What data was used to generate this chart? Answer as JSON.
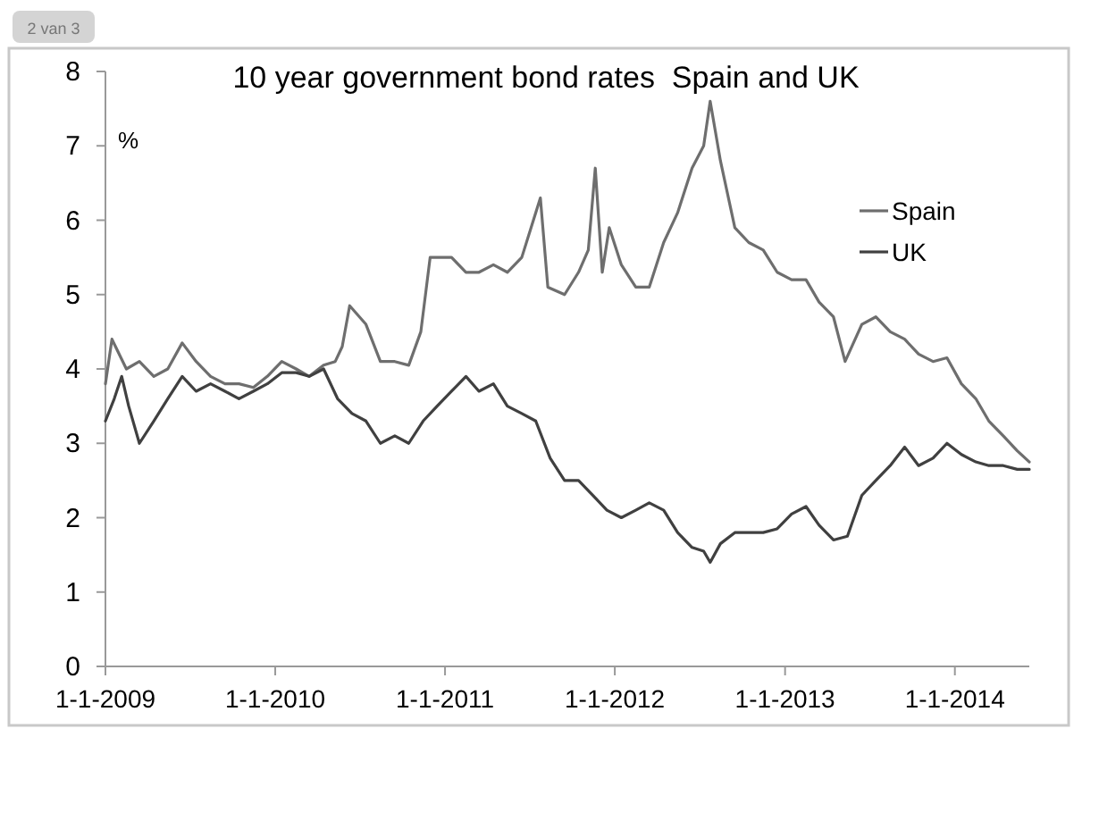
{
  "chart_data": {
    "type": "line",
    "title": "10 year government bond rates  Spain and UK",
    "ylabel": "%",
    "annotations": [
      "2 van 3"
    ],
    "xlim": [
      "2009-01-01",
      "2014-06-10"
    ],
    "ylim": [
      0,
      8
    ],
    "yticks": [
      0,
      1,
      2,
      3,
      4,
      5,
      6,
      7,
      8
    ],
    "xticks": [
      {
        "value": "2009-01-01",
        "label": "1-1-2009"
      },
      {
        "value": "2010-01-01",
        "label": "1-1-2010"
      },
      {
        "value": "2011-01-01",
        "label": "1-1-2011"
      },
      {
        "value": "2012-01-01",
        "label": "1-1-2012"
      },
      {
        "value": "2013-01-01",
        "label": "1-1-2013"
      },
      {
        "value": "2014-01-01",
        "label": "1-1-2014"
      }
    ],
    "grid": false,
    "legend": "top right",
    "marker": "none",
    "line_style": "solid",
    "series": [
      {
        "name": "Spain",
        "color": "#6e6e6e",
        "x": [
          "2009-01-01",
          "2009-01-15",
          "2009-02-15",
          "2009-03-15",
          "2009-04-15",
          "2009-05-15",
          "2009-06-15",
          "2009-07-15",
          "2009-08-15",
          "2009-09-15",
          "2009-10-15",
          "2009-11-15",
          "2009-12-15",
          "2010-01-15",
          "2010-02-15",
          "2010-03-15",
          "2010-04-15",
          "2010-05-10",
          "2010-05-25",
          "2010-06-10",
          "2010-07-15",
          "2010-08-15",
          "2010-09-15",
          "2010-10-15",
          "2010-11-10",
          "2010-11-30",
          "2011-01-15",
          "2011-02-15",
          "2011-03-15",
          "2011-04-15",
          "2011-05-15",
          "2011-06-15",
          "2011-07-10",
          "2011-07-25",
          "2011-08-10",
          "2011-09-15",
          "2011-10-15",
          "2011-11-05",
          "2011-11-20",
          "2011-12-05",
          "2011-12-20",
          "2012-01-15",
          "2012-02-15",
          "2012-03-15",
          "2012-04-15",
          "2012-05-15",
          "2012-06-15",
          "2012-07-10",
          "2012-07-24",
          "2012-08-15",
          "2012-09-15",
          "2012-10-15",
          "2012-11-15",
          "2012-12-15",
          "2013-01-15",
          "2013-02-15",
          "2013-03-15",
          "2013-04-15",
          "2013-05-10",
          "2013-06-15",
          "2013-07-15",
          "2013-08-15",
          "2013-09-15",
          "2013-10-15",
          "2013-11-15",
          "2013-12-15",
          "2014-01-15",
          "2014-02-15",
          "2014-03-15",
          "2014-04-15",
          "2014-05-15",
          "2014-06-10"
        ],
        "values": [
          3.8,
          4.4,
          4.0,
          4.1,
          3.9,
          4.0,
          4.35,
          4.1,
          3.9,
          3.8,
          3.8,
          3.75,
          3.9,
          4.1,
          4.0,
          3.9,
          4.05,
          4.1,
          4.3,
          4.85,
          4.6,
          4.1,
          4.1,
          4.05,
          4.5,
          5.5,
          5.5,
          5.3,
          5.3,
          5.4,
          5.3,
          5.5,
          6.0,
          6.3,
          5.1,
          5.0,
          5.3,
          5.6,
          6.7,
          5.3,
          5.9,
          5.4,
          5.1,
          5.1,
          5.7,
          6.1,
          6.7,
          7.0,
          7.6,
          6.8,
          5.9,
          5.7,
          5.6,
          5.3,
          5.2,
          5.2,
          4.9,
          4.7,
          4.1,
          4.6,
          4.7,
          4.5,
          4.4,
          4.2,
          4.1,
          4.15,
          3.8,
          3.6,
          3.3,
          3.1,
          2.9,
          2.75
        ]
      },
      {
        "name": "UK",
        "color": "#404040",
        "x": [
          "2009-01-01",
          "2009-01-20",
          "2009-02-05",
          "2009-02-20",
          "2009-03-15",
          "2009-04-15",
          "2009-05-15",
          "2009-06-15",
          "2009-07-15",
          "2009-08-15",
          "2009-09-15",
          "2009-10-15",
          "2009-11-15",
          "2009-12-15",
          "2010-01-15",
          "2010-02-15",
          "2010-03-15",
          "2010-04-15",
          "2010-05-15",
          "2010-06-15",
          "2010-07-15",
          "2010-08-15",
          "2010-09-15",
          "2010-10-15",
          "2010-11-15",
          "2010-12-15",
          "2011-01-15",
          "2011-02-15",
          "2011-03-15",
          "2011-04-15",
          "2011-05-15",
          "2011-06-15",
          "2011-07-15",
          "2011-08-15",
          "2011-09-15",
          "2011-10-15",
          "2011-11-15",
          "2011-12-15",
          "2012-01-15",
          "2012-02-15",
          "2012-03-15",
          "2012-04-15",
          "2012-05-15",
          "2012-06-15",
          "2012-07-10",
          "2012-07-24",
          "2012-08-15",
          "2012-09-15",
          "2012-10-15",
          "2012-11-15",
          "2012-12-15",
          "2013-01-15",
          "2013-02-15",
          "2013-03-15",
          "2013-04-15",
          "2013-05-15",
          "2013-06-15",
          "2013-07-15",
          "2013-08-15",
          "2013-09-15",
          "2013-10-15",
          "2013-11-15",
          "2013-12-15",
          "2014-01-15",
          "2014-02-15",
          "2014-03-15",
          "2014-04-15",
          "2014-05-15",
          "2014-06-10"
        ],
        "values": [
          3.3,
          3.6,
          3.9,
          3.5,
          3.0,
          3.3,
          3.6,
          3.9,
          3.7,
          3.8,
          3.7,
          3.6,
          3.7,
          3.8,
          3.95,
          3.95,
          3.9,
          4.0,
          3.6,
          3.4,
          3.3,
          3.0,
          3.1,
          3.0,
          3.3,
          3.5,
          3.7,
          3.9,
          3.7,
          3.8,
          3.5,
          3.4,
          3.3,
          2.8,
          2.5,
          2.5,
          2.3,
          2.1,
          2.0,
          2.1,
          2.2,
          2.1,
          1.8,
          1.6,
          1.55,
          1.4,
          1.65,
          1.8,
          1.8,
          1.8,
          1.85,
          2.05,
          2.15,
          1.9,
          1.7,
          1.75,
          2.3,
          2.5,
          2.7,
          2.95,
          2.7,
          2.8,
          3.0,
          2.85,
          2.75,
          2.7,
          2.7,
          2.65,
          2.65
        ]
      }
    ]
  }
}
